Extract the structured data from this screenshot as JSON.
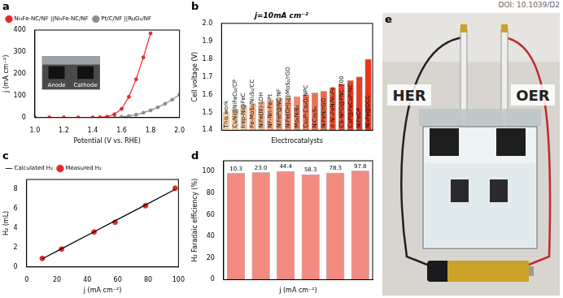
{
  "doi": "DOI: 10.1039/D2",
  "chart_data": [
    {
      "panel": "a",
      "type": "line",
      "x_label": "Potential (V vs. RHE)",
      "y_label": "j (mA cm⁻²)",
      "xlim": [
        1,
        2
      ],
      "xticks": [
        {
          "value": 1,
          "label": "1.0"
        },
        1.2,
        1.4,
        1.6,
        1.8,
        {
          "value": 2,
          "label": "2.0"
        }
      ],
      "ylim": [
        0,
        400
      ],
      "yticks": [
        0,
        100,
        200,
        300,
        400
      ],
      "grid": false,
      "legend": "upper left",
      "marker": "circle",
      "annotations": [
        "Anode",
        "Cathode"
      ],
      "series": [
        {
          "name": "Ni₃Fe-NC/NF ||Ni₃Fe-NC/NF",
          "color": "#e8262a",
          "line_style": "solid",
          "x": [
            1.0,
            1.1,
            1.2,
            1.3,
            1.4,
            1.45,
            1.5,
            1.55,
            1.6,
            1.65,
            1.7,
            1.75,
            1.8
          ],
          "values": [
            0,
            0,
            0,
            0,
            0,
            1,
            4,
            15,
            40,
            95,
            175,
            275,
            385
          ]
        },
        {
          "name": "Pt/C/NF ||RuO₂/NF",
          "color": "#8c8c8c",
          "line_style": "solid",
          "x": [
            1.0,
            1.1,
            1.2,
            1.3,
            1.4,
            1.5,
            1.55,
            1.6,
            1.65,
            1.7,
            1.75,
            1.8,
            1.85,
            1.9,
            1.95,
            2.0
          ],
          "values": [
            0,
            0,
            0,
            0,
            0,
            0,
            1,
            3,
            7,
            13,
            22,
            33,
            47,
            63,
            82,
            105
          ]
        }
      ]
    },
    {
      "panel": "b",
      "type": "bar",
      "title": "j=10mA cm⁻²",
      "x_label": "Electrocatalysts",
      "y_label": "Cell voltage (V)",
      "categories": [
        "This work",
        "CuNi@NiFeCu/CP",
        "Irep-Ni@FeC",
        "Fe-MoS₂/Ni₃S₂/CC",
        "NiFe(III)-LDH",
        "NF-Nn-Fe-Pt",
        "NiFeP@NC/NF",
        "NiFe(OH)ₓ@MoS₂/rGO",
        "Mo₂NiB₂",
        "Cu₂P-Co₂O/NPC",
        "NiCo₂S₄",
        "NiFeN/rGO",
        "d-Ni₃FeN/Ni₃Fe",
        "CS-NFO@PNC-700",
        "CoP@FeCoP/NC",
        "NiFeOP",
        "Ni₃Fe@OCC"
      ],
      "values": [
        1.5,
        1.52,
        1.54,
        1.55,
        1.56,
        1.57,
        1.58,
        1.58,
        1.59,
        1.6,
        1.61,
        1.62,
        1.64,
        1.66,
        1.68,
        1.7,
        1.8
      ],
      "colors": [
        "#fbd3a6",
        "#fac99d",
        "#f9bf94",
        "#f8b58b",
        "#f7ab82",
        "#f6a17a",
        "#f59771",
        "#f48d68",
        "#f3835f",
        "#f27956",
        "#f16f4e",
        "#ef6545",
        "#ee5b3c",
        "#ed5133",
        "#ec472b",
        "#eb3d22",
        "#ea3319"
      ],
      "ylim": [
        1.4,
        2
      ],
      "yticks": [
        1.4,
        1.5,
        1.6,
        1.7,
        1.8,
        1.9,
        {
          "value": 2,
          "label": "2.0"
        }
      ],
      "grid": false,
      "tick_labels": "y"
    },
    {
      "panel": "c",
      "type": "scatter",
      "x_label": "j (mA cm⁻²)",
      "y_label": "H₂ (mL)",
      "x": [
        10.3,
        23.0,
        44.4,
        58.3,
        78.3,
        97.8
      ],
      "xlim": [
        0,
        100
      ],
      "xticks": [
        0,
        20,
        40,
        60,
        80,
        100
      ],
      "ylim": [
        0,
        9
      ],
      "yticks": [
        0,
        2,
        4,
        6,
        8
      ],
      "grid": false,
      "legend": "upper left",
      "series": [
        {
          "name": "Calculated H₂",
          "color": "#000000",
          "type": "line",
          "marker": "none",
          "line_style": "solid",
          "values": [
            0.84,
            1.87,
            3.62,
            4.75,
            6.38,
            7.97
          ]
        },
        {
          "name": "Measured H₂",
          "color": "#e8262a",
          "type": "scatter",
          "marker": "circle",
          "values": [
            0.88,
            1.85,
            3.6,
            4.6,
            6.3,
            8.1
          ]
        }
      ]
    },
    {
      "panel": "d",
      "type": "bar",
      "x_label": "j (mA cm⁻²)",
      "y_label": "H₂ Faradaic efficiency (%)",
      "categories": [
        "10.3",
        "23.0",
        "44.4",
        "58.3",
        "78.3",
        "97.8"
      ],
      "values": [
        98.5,
        99.2,
        100.4,
        97.3,
        99.0,
        100.8
      ],
      "color": "#f28b82",
      "ylim": [
        0,
        110
      ],
      "yticks": [
        0,
        20,
        40,
        60,
        80,
        100
      ],
      "grid": false,
      "tick_labels": "y"
    }
  ],
  "photo": {
    "panel": "e",
    "labels": [
      "HER",
      "OER"
    ]
  }
}
